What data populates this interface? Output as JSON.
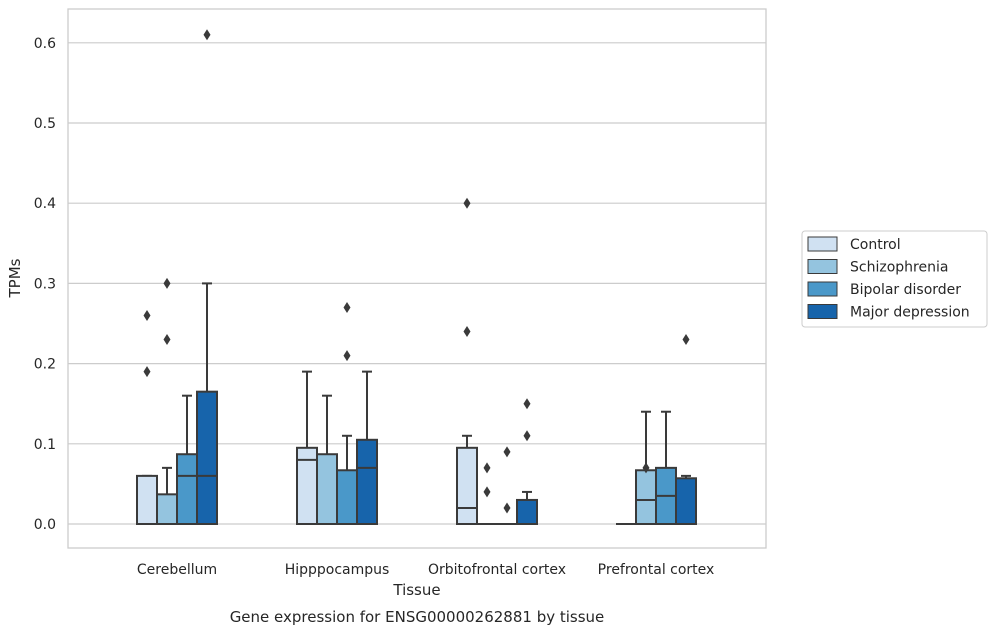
{
  "chart_data": {
    "type": "boxplot",
    "title": "",
    "caption": "Gene expression for ENSG00000262881 by tissue",
    "xlabel": "Tissue",
    "ylabel": "TPMs",
    "ylim": [
      -0.03,
      0.64
    ],
    "yticks": [
      0.0,
      0.1,
      0.2,
      0.3,
      0.4,
      0.5,
      0.6
    ],
    "ytick_labels": [
      "0.0",
      "0.1",
      "0.2",
      "0.3",
      "0.4",
      "0.5",
      "0.6"
    ],
    "grid": "horizontal",
    "legend_position": "right",
    "categories": [
      "Cerebellum",
      "Hipppocampus",
      "Orbitofrontal cortex",
      "Prefrontal cortex"
    ],
    "series": [
      {
        "name": "Control",
        "color": "#d0e1f2",
        "boxes": [
          {
            "q1": 0.0,
            "median": 0.0,
            "q3": 0.06,
            "whisker_low": 0.0,
            "whisker_high": 0.06,
            "outliers": [
              0.19,
              0.26
            ]
          },
          {
            "q1": 0.0,
            "median": 0.08,
            "q3": 0.095,
            "whisker_low": 0.0,
            "whisker_high": 0.19,
            "outliers": []
          },
          {
            "q1": 0.0,
            "median": 0.02,
            "q3": 0.095,
            "whisker_low": 0.0,
            "whisker_high": 0.11,
            "outliers": [
              0.24,
              0.4
            ]
          },
          {
            "q1": 0.0,
            "median": 0.0,
            "q3": 0.0,
            "whisker_low": 0.0,
            "whisker_high": 0.0,
            "outliers": []
          }
        ]
      },
      {
        "name": "Schizophrenia",
        "color": "#94c4df",
        "boxes": [
          {
            "q1": 0.0,
            "median": 0.0,
            "q3": 0.037,
            "whisker_low": 0.0,
            "whisker_high": 0.07,
            "outliers": [
              0.23,
              0.3
            ]
          },
          {
            "q1": 0.0,
            "median": 0.0,
            "q3": 0.087,
            "whisker_low": 0.0,
            "whisker_high": 0.16,
            "outliers": []
          },
          {
            "q1": 0.0,
            "median": 0.0,
            "q3": 0.0,
            "whisker_low": 0.0,
            "whisker_high": 0.0,
            "outliers": [
              0.04,
              0.07
            ]
          },
          {
            "q1": 0.0,
            "median": 0.03,
            "q3": 0.067,
            "whisker_low": 0.0,
            "whisker_high": 0.14,
            "outliers": [
              0.07
            ]
          }
        ]
      },
      {
        "name": "Bipolar disorder",
        "color": "#4a98c9",
        "boxes": [
          {
            "q1": 0.0,
            "median": 0.06,
            "q3": 0.087,
            "whisker_low": 0.0,
            "whisker_high": 0.16,
            "outliers": []
          },
          {
            "q1": 0.0,
            "median": 0.0,
            "q3": 0.067,
            "whisker_low": 0.0,
            "whisker_high": 0.11,
            "outliers": [
              0.21,
              0.27
            ]
          },
          {
            "q1": 0.0,
            "median": 0.0,
            "q3": 0.0,
            "whisker_low": 0.0,
            "whisker_high": 0.0,
            "outliers": [
              0.02,
              0.09
            ]
          },
          {
            "q1": 0.0,
            "median": 0.035,
            "q3": 0.07,
            "whisker_low": 0.0,
            "whisker_high": 0.14,
            "outliers": []
          }
        ]
      },
      {
        "name": "Major depression",
        "color": "#1764ab",
        "boxes": [
          {
            "q1": 0.0,
            "median": 0.06,
            "q3": 0.165,
            "whisker_low": 0.0,
            "whisker_high": 0.3,
            "outliers": [
              0.61
            ]
          },
          {
            "q1": 0.0,
            "median": 0.07,
            "q3": 0.105,
            "whisker_low": 0.0,
            "whisker_high": 0.19,
            "outliers": []
          },
          {
            "q1": 0.0,
            "median": 0.0,
            "q3": 0.03,
            "whisker_low": 0.0,
            "whisker_high": 0.04,
            "outliers": [
              0.11,
              0.15
            ]
          },
          {
            "q1": 0.0,
            "median": 0.0,
            "q3": 0.057,
            "whisker_low": 0.0,
            "whisker_high": 0.06,
            "outliers": [
              0.23
            ]
          }
        ]
      }
    ]
  }
}
